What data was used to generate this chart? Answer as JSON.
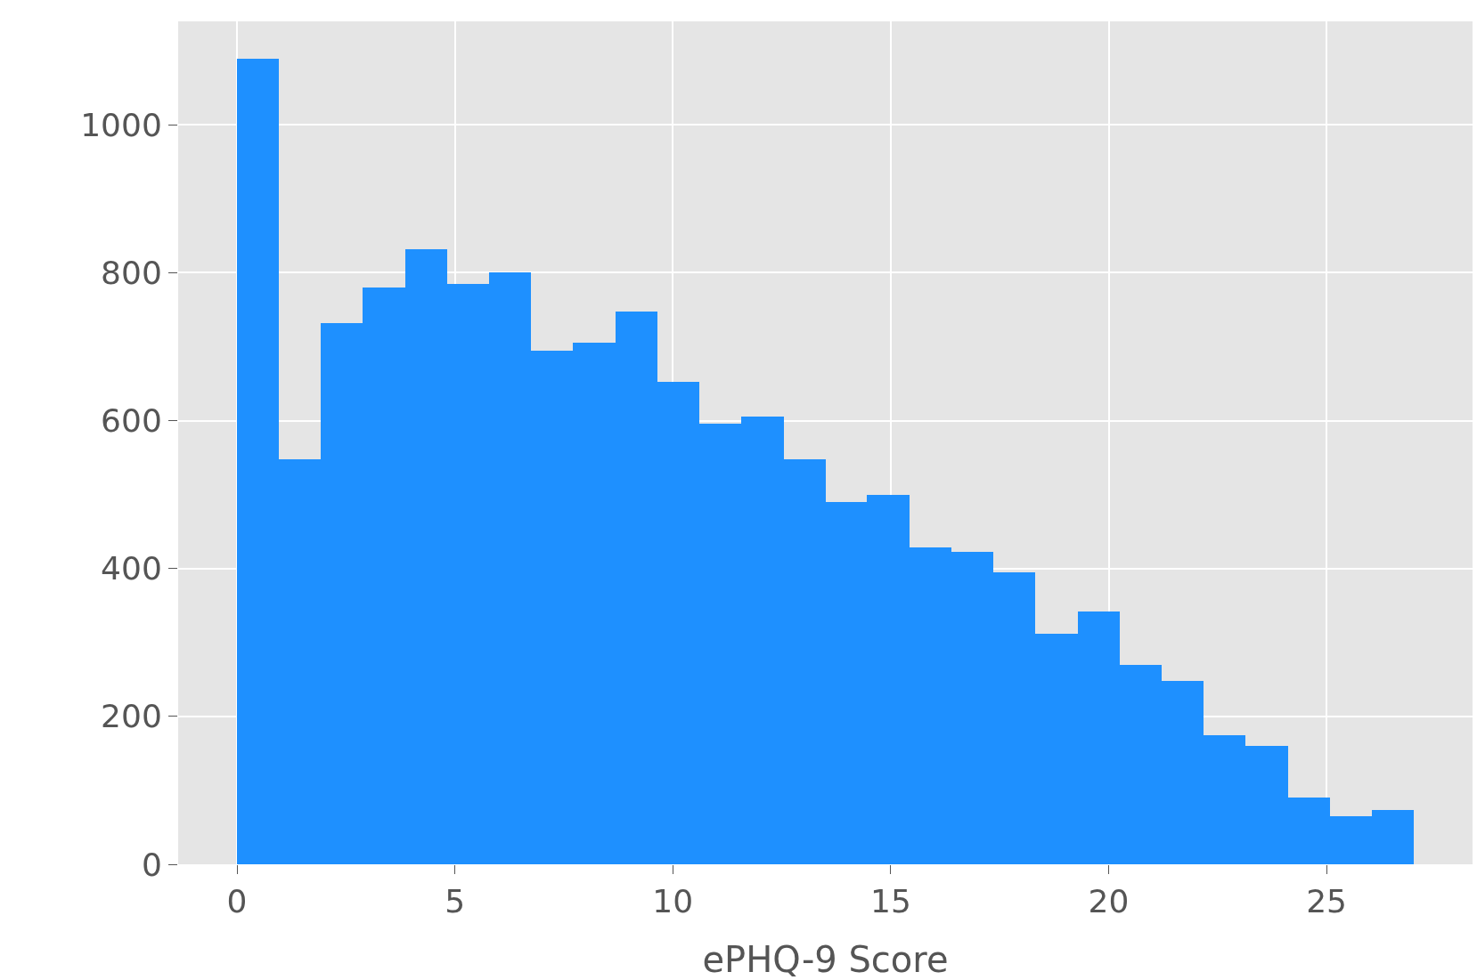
{
  "chart_data": {
    "type": "histogram",
    "xlabel": "ePHQ-9 Score",
    "bins": [
      0,
      0.96,
      1.93,
      2.89,
      3.86,
      4.82,
      5.79,
      6.75,
      7.71,
      8.68,
      9.64,
      10.61,
      11.57,
      12.54,
      13.5,
      14.46,
      15.43,
      16.39,
      17.36,
      18.32,
      19.29,
      20.25,
      21.21,
      22.18,
      23.14,
      24.11,
      25.07,
      26.04,
      27
    ],
    "values": [
      1090,
      548,
      732,
      780,
      832,
      785,
      800,
      695,
      705,
      748,
      653,
      596,
      605,
      548,
      490,
      500,
      428,
      422,
      395,
      312,
      342,
      270,
      248,
      175,
      160,
      90,
      65,
      73
    ],
    "color": "#1e90ff",
    "xlim": [
      -1.35,
      28.35
    ],
    "ylim": [
      0,
      1140
    ],
    "xticks": [
      0,
      5,
      10,
      15,
      20,
      25
    ],
    "yticks": [
      0,
      200,
      400,
      600,
      800,
      1000
    ],
    "grid": true,
    "legend": false
  }
}
